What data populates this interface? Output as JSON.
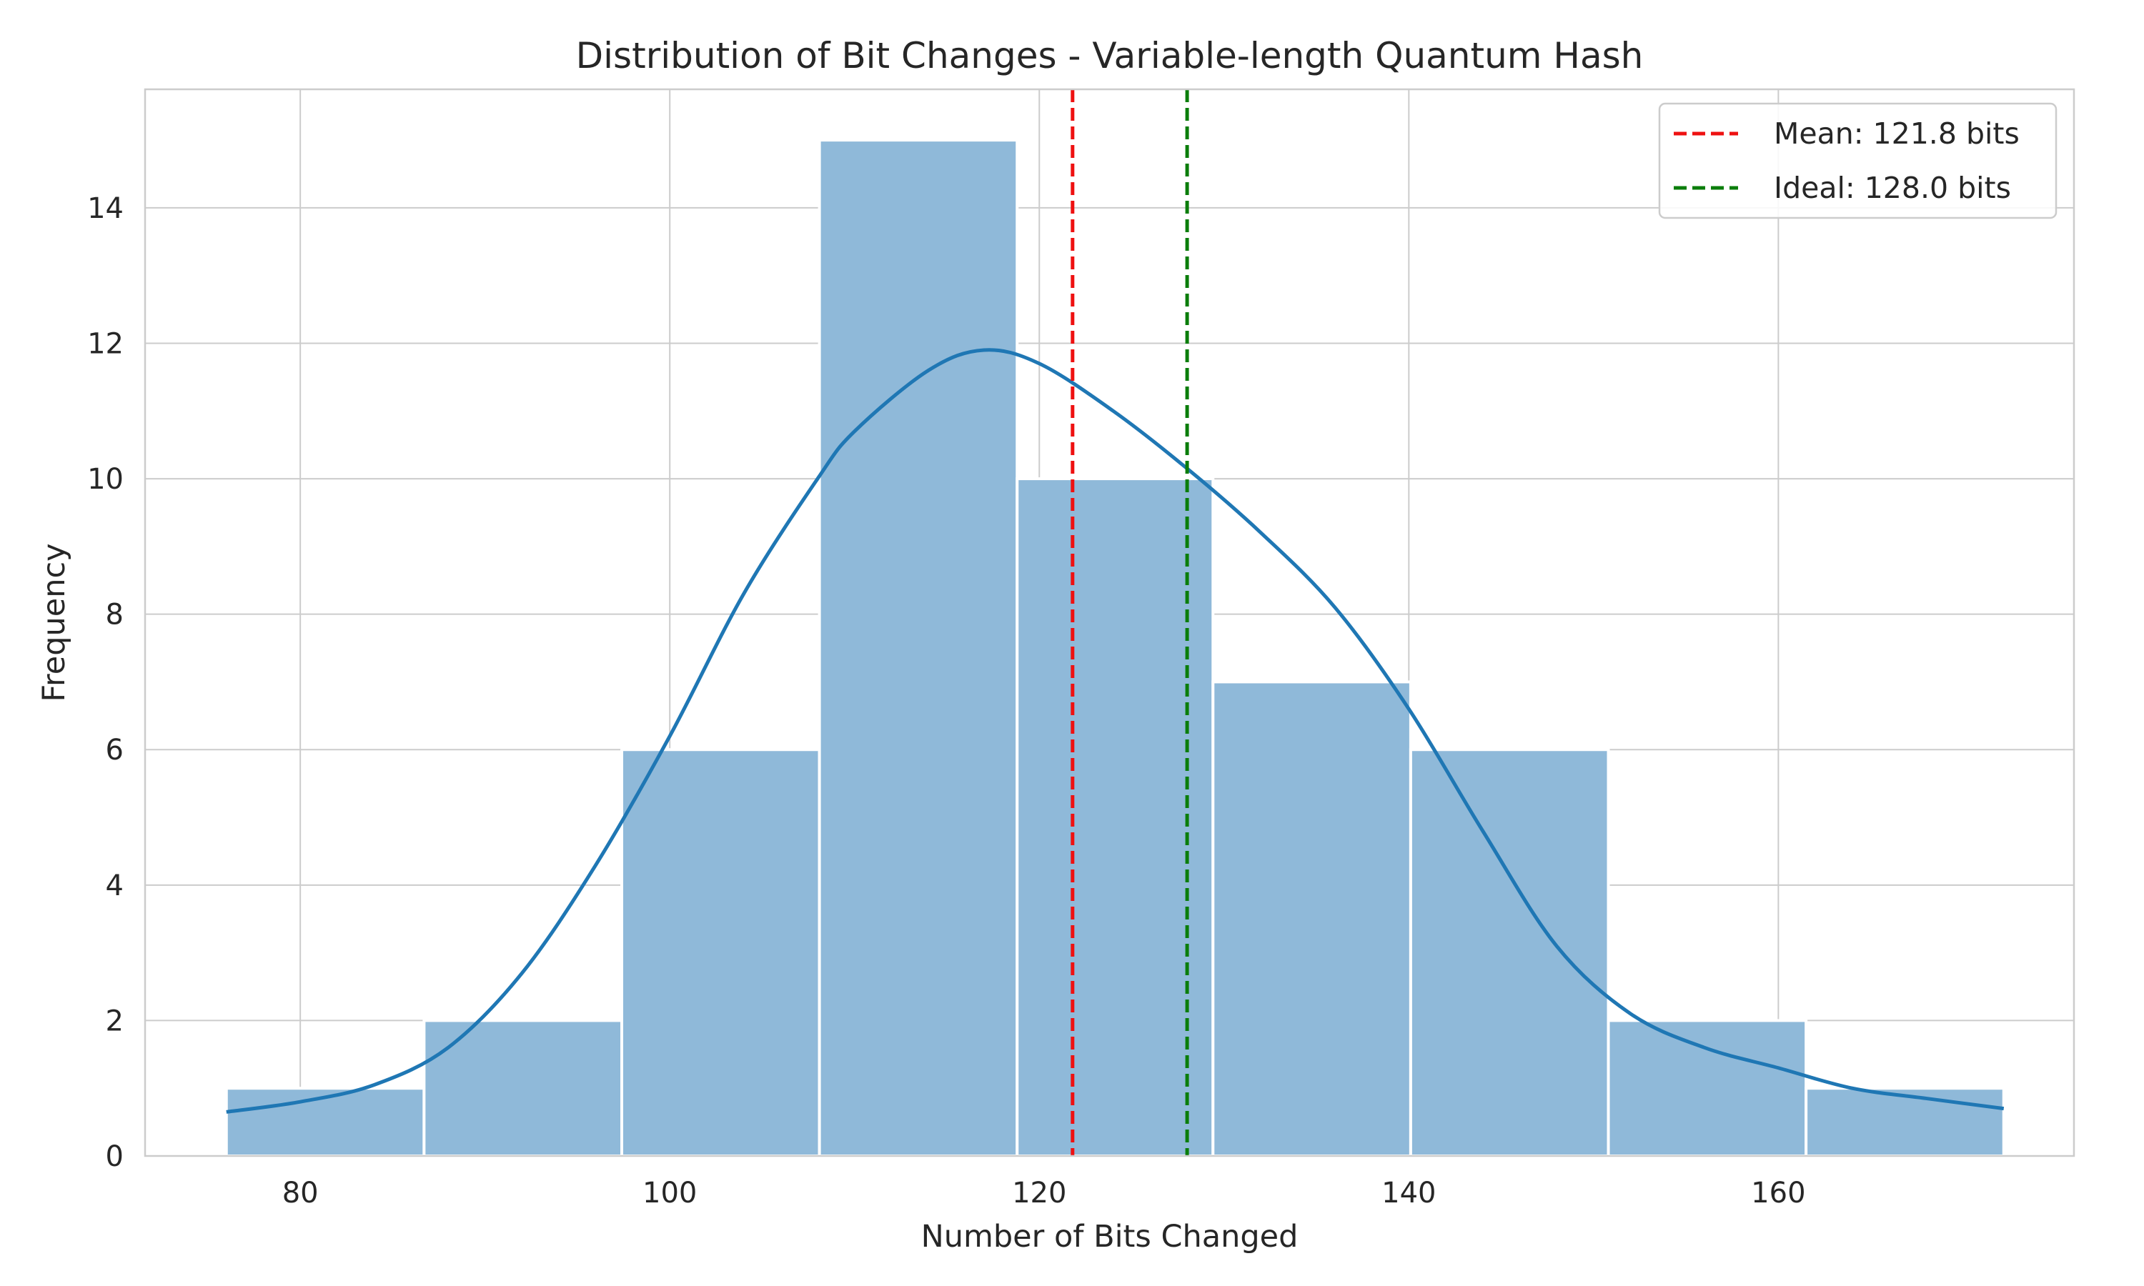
{
  "chart_data": {
    "type": "bar",
    "subtype": "histogram-with-kde",
    "title": "Distribution of Bit Changes - Variable-length Quantum Hash",
    "xlabel": "Number of Bits Changed",
    "ylabel": "Frequency",
    "xlim": [
      71.6,
      176.0
    ],
    "ylim": [
      0,
      15.75
    ],
    "xticks": [
      80,
      100,
      120,
      140,
      160
    ],
    "yticks": [
      0,
      2,
      4,
      6,
      8,
      10,
      12,
      14
    ],
    "grid": true,
    "bars": {
      "color": "#8fb9d9",
      "edges": [
        76.0,
        86.7,
        97.4,
        108.1,
        118.8,
        129.4,
        140.1,
        150.8,
        161.5,
        172.2
      ],
      "values": [
        1,
        2,
        6,
        15,
        10,
        7,
        6,
        2,
        1
      ]
    },
    "kde": {
      "color": "#1f77b4",
      "x": [
        76.0,
        80,
        84,
        88,
        92,
        96,
        100,
        104,
        108,
        110,
        114,
        117,
        120,
        124,
        128,
        132,
        136,
        140,
        144,
        148,
        152,
        156,
        160,
        164,
        168,
        172.2
      ],
      "y": [
        0.65,
        0.8,
        1.05,
        1.6,
        2.7,
        4.3,
        6.2,
        8.3,
        10.0,
        10.7,
        11.6,
        11.9,
        11.7,
        11.0,
        10.15,
        9.2,
        8.1,
        6.6,
        4.8,
        3.1,
        2.1,
        1.6,
        1.3,
        1.0,
        0.85,
        0.7
      ]
    },
    "reference_lines": [
      {
        "name": "Mean: 121.8 bits",
        "x": 121.8,
        "color": "#ee1111",
        "style": "dashed"
      },
      {
        "name": "Ideal: 128.0 bits",
        "x": 128.0,
        "color": "#0a7d0a",
        "style": "dashed"
      }
    ],
    "legend_position": "top-right"
  }
}
